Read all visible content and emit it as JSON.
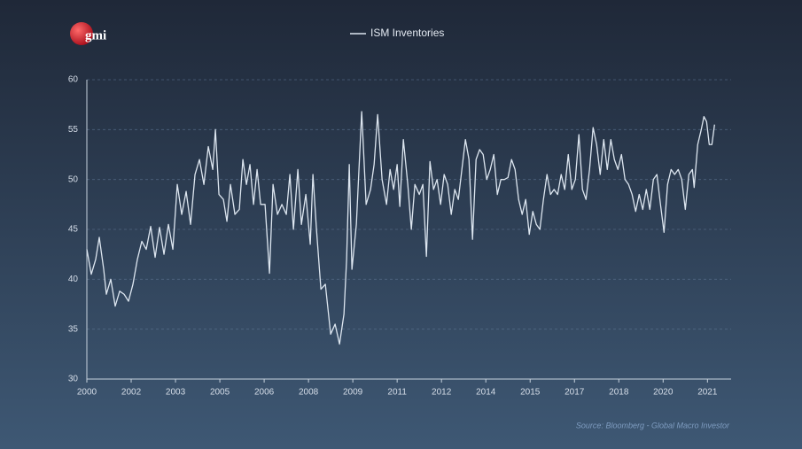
{
  "logo": "gmi",
  "source": "Source: Bloomberg - Global Macro Investor",
  "chart_data": {
    "type": "line",
    "grid": true,
    "legend": "top",
    "xlim": [
      2000,
      2021.8
    ],
    "xticks": [
      2000,
      {
        "value": 2001.5,
        "label": "2002"
      },
      2003,
      {
        "value": 2004.5,
        "label": "2005"
      },
      2006,
      {
        "value": 2007.5,
        "label": "2008"
      },
      2009,
      {
        "value": 2010.5,
        "label": "2011"
      },
      2012,
      {
        "value": 2013.5,
        "label": "2014"
      },
      2015,
      {
        "value": 2016.5,
        "label": "2017"
      },
      2018,
      {
        "value": 2019.5,
        "label": "2020"
      },
      2021
    ],
    "ylim": [
      30,
      60
    ],
    "yticks": [
      30,
      35,
      40,
      45,
      50,
      55,
      60
    ],
    "x": [
      2000.0,
      2000.15,
      2000.3,
      2000.42,
      2000.57,
      2000.66,
      2000.81,
      2000.96,
      2001.11,
      2001.26,
      2001.41,
      2001.56,
      2001.71,
      2001.86,
      2002.01,
      2002.16,
      2002.31,
      2002.46,
      2002.61,
      2002.76,
      2002.91,
      2003.06,
      2003.21,
      2003.36,
      2003.51,
      2003.66,
      2003.81,
      2003.96,
      2004.11,
      2004.26,
      2004.35,
      2004.47,
      2004.62,
      2004.74,
      2004.86,
      2005.01,
      2005.16,
      2005.28,
      2005.4,
      2005.52,
      2005.64,
      2005.76,
      2005.88,
      2006.03,
      2006.18,
      2006.3,
      2006.45,
      2006.6,
      2006.75,
      2006.87,
      2006.99,
      2007.14,
      2007.26,
      2007.41,
      2007.56,
      2007.65,
      2007.77,
      2007.92,
      2008.07,
      2008.25,
      2008.4,
      2008.55,
      2008.7,
      2008.79,
      2008.88,
      2008.97,
      2009.12,
      2009.3,
      2009.45,
      2009.6,
      2009.72,
      2009.84,
      2009.99,
      2010.14,
      2010.26,
      2010.38,
      2010.5,
      2010.59,
      2010.71,
      2010.86,
      2010.98,
      2011.1,
      2011.25,
      2011.37,
      2011.49,
      2011.61,
      2011.73,
      2011.85,
      2011.97,
      2012.09,
      2012.21,
      2012.33,
      2012.45,
      2012.57,
      2012.69,
      2012.81,
      2012.93,
      2013.05,
      2013.17,
      2013.29,
      2013.41,
      2013.53,
      2013.65,
      2013.77,
      2013.89,
      2014.01,
      2014.13,
      2014.25,
      2014.37,
      2014.49,
      2014.61,
      2014.73,
      2014.85,
      2014.97,
      2015.09,
      2015.21,
      2015.33,
      2015.45,
      2015.57,
      2015.69,
      2015.81,
      2015.93,
      2016.05,
      2016.17,
      2016.29,
      2016.41,
      2016.53,
      2016.65,
      2016.77,
      2016.89,
      2017.01,
      2017.13,
      2017.25,
      2017.37,
      2017.49,
      2017.61,
      2017.73,
      2017.85,
      2017.97,
      2018.09,
      2018.21,
      2018.33,
      2018.45,
      2018.57,
      2018.69,
      2018.81,
      2018.93,
      2019.05,
      2019.17,
      2019.29,
      2019.41,
      2019.53,
      2019.65,
      2019.77,
      2019.89,
      2020.01,
      2020.13,
      2020.25,
      2020.37,
      2020.49,
      2020.55,
      2020.67,
      2020.79,
      2020.88,
      2020.97,
      2021.06,
      2021.15,
      2021.24
    ],
    "series": [
      {
        "name": "ISM Inventories",
        "color": "#dde6f0",
        "values": [
          43,
          40.5,
          42,
          44.2,
          41,
          38.5,
          40,
          37.3,
          38.8,
          38.5,
          37.8,
          39.5,
          42,
          43.8,
          43,
          45.3,
          42.2,
          45.2,
          42.5,
          45.5,
          43,
          49.5,
          46.5,
          48.8,
          45.5,
          50.5,
          52,
          49.5,
          53.3,
          51,
          55,
          48.5,
          48,
          45.8,
          49.5,
          46.5,
          47,
          52,
          49.5,
          51.5,
          47.5,
          51,
          47.5,
          47.5,
          40.6,
          49.5,
          46.5,
          47.5,
          46.5,
          50.5,
          45,
          51,
          45.5,
          48.5,
          43.5,
          50.5,
          45,
          39,
          39.5,
          34.5,
          35.5,
          33.5,
          36.5,
          42,
          51.5,
          41,
          45.5,
          56.8,
          47.5,
          49,
          51.5,
          56.5,
          50,
          47.5,
          51,
          49,
          51.5,
          47.3,
          54,
          49.5,
          45,
          49.5,
          48.5,
          49.5,
          42.3,
          51.8,
          49,
          50,
          47.5,
          50.5,
          49.5,
          46.5,
          49,
          48,
          51,
          54,
          52,
          44,
          52,
          53,
          52.5,
          50,
          51,
          52.5,
          48.5,
          50,
          50,
          50.2,
          52,
          51,
          48,
          46.5,
          48,
          44.5,
          46.8,
          45.5,
          45,
          48,
          50.5,
          48.5,
          49,
          48.5,
          50.5,
          49,
          52.5,
          49,
          50,
          54.5,
          49,
          48,
          51,
          55.2,
          53.5,
          50.5,
          54,
          51,
          54,
          52,
          51,
          52.5,
          50,
          49.5,
          48.5,
          46.8,
          48.5,
          47,
          49,
          47,
          50,
          50.5,
          47.5,
          44.7,
          49.5,
          51,
          50.5,
          51,
          50,
          47,
          50.5,
          51,
          49.2,
          53.5,
          55,
          56.3,
          55.8,
          53.5,
          53.5,
          55.5
        ]
      }
    ]
  }
}
